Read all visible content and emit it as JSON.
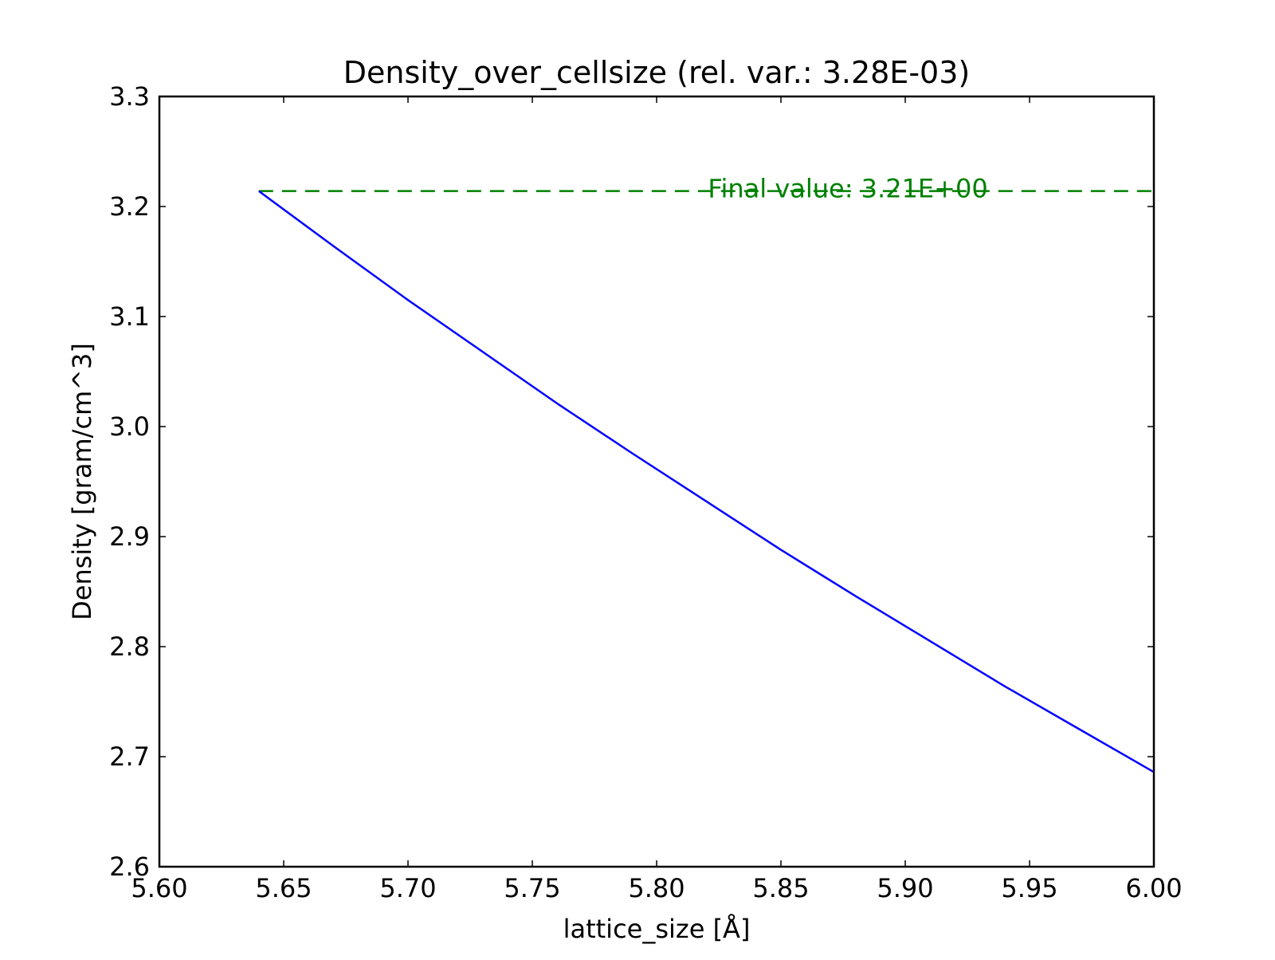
{
  "chart_data": {
    "type": "line",
    "title": "Density_over_cellsize (rel. var.: 3.28E-03)",
    "xlabel": "lattice_size [Å]",
    "ylabel": "Density [gram/cm^3]",
    "xlim": [
      5.6,
      6.0
    ],
    "ylim": [
      2.6,
      3.3
    ],
    "x_ticks": [
      "5.60",
      "5.65",
      "5.70",
      "5.75",
      "5.80",
      "5.85",
      "5.90",
      "5.95",
      "6.00"
    ],
    "y_ticks": [
      "2.6",
      "2.7",
      "2.8",
      "2.9",
      "3.0",
      "3.1",
      "3.2",
      "3.3"
    ],
    "grid": false,
    "series": [
      {
        "color": "#0000ff",
        "x": [
          5.64,
          5.67,
          5.7,
          5.73,
          5.76,
          5.79,
          5.82,
          5.85,
          5.88,
          5.91,
          5.94,
          5.97,
          6.0
        ],
        "y": [
          3.214,
          3.164,
          3.115,
          3.068,
          3.021,
          2.976,
          2.932,
          2.888,
          2.846,
          2.805,
          2.764,
          2.725,
          2.686
        ]
      }
    ],
    "reference_line": {
      "y": 3.214,
      "x_start": 5.64,
      "color": "#008000",
      "style": "dashed"
    },
    "annotation": {
      "text": "Final value: 3.21E+00",
      "x": 5.82,
      "y": 3.214,
      "color": "#008000"
    }
  }
}
